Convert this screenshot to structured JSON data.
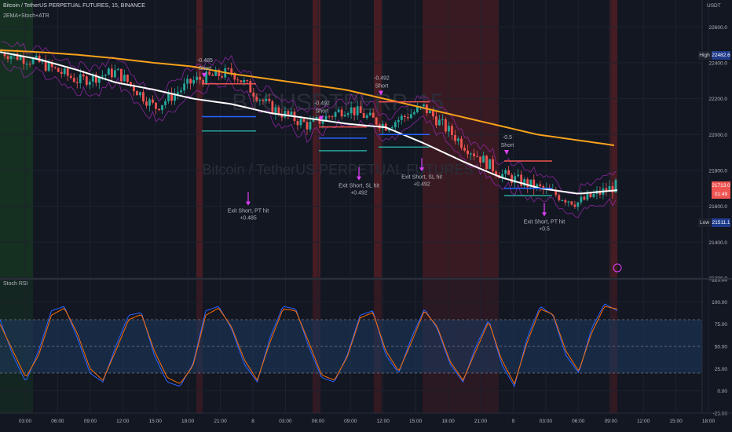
{
  "header": {
    "symbol": "Bitcoin / TetherUS PERPETUAL FUTURES, 15, BINANCE",
    "indicator": "2EMA+Stoch+ATR",
    "currency": "USDT"
  },
  "watermark": "BTCUSDTPERP, 15",
  "watermark_sub": "Bitcoin / TetherUS PERPETUAL FUTURES",
  "stoch_title": "Stoch RSI",
  "badges": {
    "high_label": "High",
    "high_value": "22482.6",
    "low_label": "Low",
    "low_value": "21511.1",
    "last_value": "21713.0",
    "countdown": "01:49"
  },
  "colors": {
    "background": "#131722",
    "bull": "#26a69a",
    "bear": "#ef5350",
    "ema_fast": "#ffffff",
    "ema_slow": "#f7a21b",
    "atr_band": "#9c27b0",
    "stoch_k": "#2962ff",
    "stoch_d": "#ff6d00",
    "stoch_band": "#1e3a5f",
    "arrow": "#e040fb",
    "green_zone": "#1b5e20",
    "red_zone": "#6b1f24"
  },
  "chart_data": [
    {
      "type": "candlestick",
      "title": "Bitcoin / TetherUS PERPETUAL FUTURES, 15, BINANCE",
      "ylim": [
        21200,
        22750
      ],
      "y_ticks": [
        22600,
        22400,
        22200,
        22000,
        21800,
        21600,
        21400,
        21200
      ],
      "x_ticks": [
        "03:00",
        "06:00",
        "09:00",
        "12:00",
        "15:00",
        "18:00",
        "21:00",
        "8",
        "03:00",
        "06:00",
        "09:00",
        "12:00",
        "15:00",
        "18:00",
        "21:00",
        "9",
        "03:00",
        "06:00",
        "09:00",
        "12:00",
        "15:00",
        "18:00"
      ],
      "ema_slow": [
        22470,
        22460,
        22445,
        22425,
        22400,
        22380,
        22340,
        22310,
        22280,
        22250,
        22200,
        22150,
        22100,
        22050,
        22000,
        21970,
        21940
      ],
      "ema_fast": [
        22460,
        22420,
        22360,
        22290,
        22250,
        22200,
        22170,
        22120,
        22090,
        22060,
        22040,
        21950,
        21850,
        21760,
        21700,
        21670,
        21690
      ],
      "close_path": [
        22460,
        22400,
        22300,
        22350,
        22150,
        22300,
        22350,
        22150,
        22050,
        22150,
        22050,
        22150,
        21950,
        21780,
        21700,
        21620,
        21713
      ],
      "trades": [
        {
          "entry_label": "-0.485",
          "side": "Short",
          "exit_label": "Exit Short, PT hit",
          "result": "+0.485"
        },
        {
          "entry_label": "-0.492",
          "side": "Short",
          "exit_label": "Exit Short, SL hit",
          "result": "+0.492"
        },
        {
          "entry_label": "-0.492",
          "side": "Short",
          "exit_label": "Exit Short, SL hit",
          "result": "+0.492"
        },
        {
          "entry_label": "-0.5",
          "side": "Short",
          "exit_label": "Exit Short, PT hit",
          "result": "+0.5"
        }
      ]
    },
    {
      "type": "line",
      "title": "Stoch RSI",
      "ylim": [
        -25,
        125
      ],
      "y_ticks": [
        125,
        100,
        75,
        50,
        25,
        0,
        -25
      ],
      "band": [
        20,
        80
      ],
      "series": [
        {
          "values": [
            80,
            40,
            10,
            45,
            90,
            95,
            60,
            20,
            10,
            50,
            85,
            88,
            40,
            10,
            5,
            30,
            90,
            95,
            70,
            30,
            10,
            60,
            95,
            92,
            50,
            15,
            10,
            40,
            85,
            90,
            40,
            20,
            60,
            92,
            70,
            30,
            10,
            50,
            80,
            30,
            5,
            60,
            95,
            85,
            40,
            20,
            70,
            98,
            90
          ]
        },
        {
          "values": [
            75,
            45,
            15,
            40,
            85,
            93,
            65,
            25,
            12,
            45,
            80,
            86,
            45,
            15,
            8,
            28,
            85,
            93,
            72,
            35,
            12,
            55,
            92,
            90,
            55,
            18,
            12,
            38,
            82,
            88,
            45,
            22,
            55,
            90,
            72,
            33,
            12,
            45,
            78,
            35,
            8,
            55,
            92,
            86,
            45,
            22,
            65,
            95,
            92
          ]
        }
      ]
    }
  ]
}
